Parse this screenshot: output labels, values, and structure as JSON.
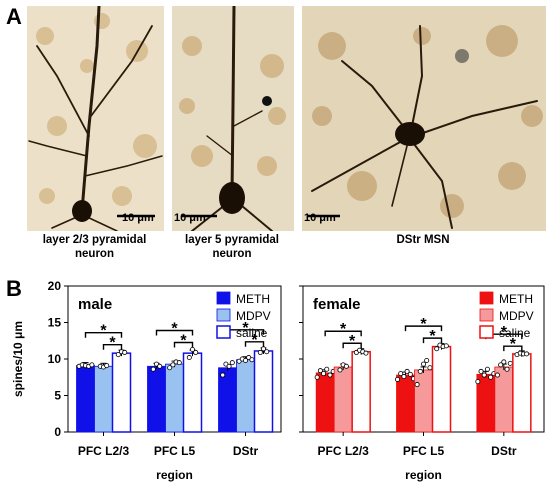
{
  "panel_a": {
    "letter": "A",
    "images": [
      {
        "caption_line1": "layer 2/3 pyramidal",
        "caption_line2": "neuron",
        "scale": "10 μm"
      },
      {
        "caption_line1": "layer 5 pyramidal",
        "caption_line2": "neuron",
        "scale": "10 μm"
      },
      {
        "caption_line1": "DStr MSN",
        "caption_line2": "",
        "scale": "10 μm"
      }
    ]
  },
  "panel_b": {
    "letter": "B",
    "ylabel": "spines/10 μm",
    "xlabel": "region"
  },
  "colors": {
    "male": {
      "METH": "#1010e8",
      "MDPV": "#99c2f0",
      "saline": "#ffffff",
      "edge": "#1010e8"
    },
    "female": {
      "METH": "#ee1111",
      "MDPV": "#f5999a",
      "saline": "#ffffff",
      "edge": "#ee1111"
    },
    "background": "#ffffff"
  },
  "chart_data": [
    {
      "type": "bar",
      "title": "male",
      "ylabel": "spines/10 μm",
      "xlabel": "region",
      "ylim": [
        0,
        20
      ],
      "yticks": [
        0,
        5,
        10,
        15,
        20
      ],
      "categories": [
        "PFC L2/3",
        "PFC L5",
        "DStr"
      ],
      "series": [
        {
          "name": "METH",
          "values": [
            9.1,
            9.0,
            8.8
          ],
          "points": [
            [
              9.0,
              9.2,
              9.1,
              9.0,
              9.2
            ],
            [
              8.6,
              9.3,
              9.0
            ],
            [
              7.8,
              9.3,
              9.0,
              9.5
            ]
          ]
        },
        {
          "name": "MDPV",
          "values": [
            9.0,
            9.3,
            9.9
          ],
          "points": [
            [
              9.0,
              8.9,
              9.1
            ],
            [
              8.8,
              9.2,
              9.6,
              9.5
            ],
            [
              9.7,
              10.0,
              9.8,
              10.2,
              9.9
            ]
          ]
        },
        {
          "name": "saline",
          "values": [
            10.8,
            10.8,
            11.1
          ],
          "points": [
            [
              10.6,
              11.0,
              10.9
            ],
            [
              10.2,
              11.3,
              10.9
            ],
            [
              10.9,
              11.4,
              11.0
            ]
          ]
        }
      ],
      "significance": "*",
      "legend": "top-right"
    },
    {
      "type": "bar",
      "title": "female",
      "xlabel": "region",
      "ylim": [
        0,
        20
      ],
      "yticks": [
        0,
        5,
        10,
        15,
        20
      ],
      "categories": [
        "PFC L2/3",
        "PFC L5",
        "DStr"
      ],
      "series": [
        {
          "name": "METH",
          "values": [
            8.1,
            7.8,
            7.9
          ],
          "points": [
            [
              7.5,
              8.4,
              8.0,
              8.6,
              7.8,
              8.3
            ],
            [
              7.2,
              8.0,
              7.6,
              8.3,
              7.9,
              7.3
            ],
            [
              6.9,
              8.3,
              7.8,
              8.6,
              7.5,
              8.0
            ]
          ]
        },
        {
          "name": "MDPV",
          "values": [
            8.9,
            8.5,
            8.9
          ],
          "points": [
            [
              8.5,
              9.2,
              9.0
            ],
            [
              6.5,
              8.3,
              9.3,
              9.8,
              8.8
            ],
            [
              7.8,
              9.2,
              9.6,
              8.6,
              9.4
            ]
          ]
        },
        {
          "name": "saline",
          "values": [
            11.0,
            11.7,
            10.7
          ],
          "points": [
            [
              10.9,
              11.2,
              11.0,
              10.8
            ],
            [
              11.4,
              11.9,
              11.7,
              11.8
            ],
            [
              10.6,
              10.8,
              10.7,
              10.7
            ]
          ]
        }
      ],
      "significance": "*",
      "legend": "top-right"
    }
  ]
}
